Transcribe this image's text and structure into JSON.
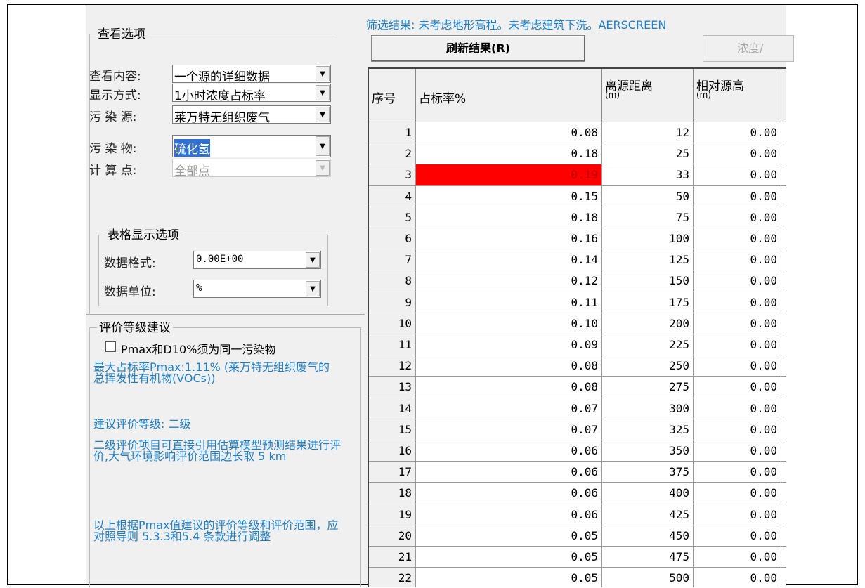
{
  "filter_result": "筛选结果: 未考虑地形高程。未考虑建筑下洗。AERSCREEN",
  "view_options": {
    "title": "查看选项",
    "fields": [
      {
        "label": "查看内容:",
        "value": "一个源的详细数据"
      },
      {
        "label": "显示方式:",
        "value": "1小时浓度占标率"
      },
      {
        "label": "污 染 源:",
        "value": "莱万特无组织废气"
      },
      {
        "label": "污 染 物:",
        "value": "硫化氢"
      },
      {
        "label": "计 算 点:",
        "value": "全部点"
      }
    ]
  },
  "table_options": {
    "title": "表格显示选项",
    "fields": [
      {
        "label": "数据格式:",
        "value": "0.00E+00"
      },
      {
        "label": "数据单位:",
        "value": "%"
      }
    ]
  },
  "grade": {
    "title": "评价等级建议",
    "checkbox": "Pmax和D10%须为同一污染物",
    "texts": [
      "最大占标率Pmax:1.11% (莱万特无组织废气的 总挥发性有机物(VOCs))",
      "建议评价等级: 二级",
      "二级评价项目可直接引用估算模型预测结果进行评价,大气环境影响评价范围边长取 5 km",
      "以上根据Pmax值建议的评价等级和评价范围，应对照导则 5.3.3和5.4 条款进行调整"
    ]
  },
  "buttons": {
    "refresh": "刷新结果(R)",
    "concentration": "浓度/"
  },
  "table": {
    "headers": [
      {
        "text": "序号"
      },
      {
        "text": "占标率%"
      },
      {
        "text": "离源距离",
        "unit": "(m)"
      },
      {
        "text": "相对源高",
        "unit": "(m)"
      }
    ],
    "rows": [
      [
        "1",
        "0.08",
        "12",
        "0.00"
      ],
      [
        "2",
        "0.18",
        "25",
        "0.00"
      ],
      [
        "3",
        "0.19",
        "33",
        "0.00"
      ],
      [
        "4",
        "0.15",
        "50",
        "0.00"
      ],
      [
        "5",
        "0.18",
        "75",
        "0.00"
      ],
      [
        "6",
        "0.16",
        "100",
        "0.00"
      ],
      [
        "7",
        "0.14",
        "125",
        "0.00"
      ],
      [
        "8",
        "0.12",
        "150",
        "0.00"
      ],
      [
        "9",
        "0.11",
        "175",
        "0.00"
      ],
      [
        "10",
        "0.10",
        "200",
        "0.00"
      ],
      [
        "11",
        "0.09",
        "225",
        "0.00"
      ],
      [
        "12",
        "0.08",
        "250",
        "0.00"
      ],
      [
        "13",
        "0.08",
        "275",
        "0.00"
      ],
      [
        "14",
        "0.07",
        "300",
        "0.00"
      ],
      [
        "15",
        "0.07",
        "325",
        "0.00"
      ],
      [
        "16",
        "0.06",
        "350",
        "0.00"
      ],
      [
        "17",
        "0.06",
        "375",
        "0.00"
      ],
      [
        "18",
        "0.06",
        "400",
        "0.00"
      ],
      [
        "19",
        "0.06",
        "425",
        "0.00"
      ],
      [
        "20",
        "0.05",
        "450",
        "0.00"
      ],
      [
        "21",
        "0.05",
        "475",
        "0.00"
      ],
      [
        "22",
        "0.05",
        "500",
        "0.00"
      ]
    ],
    "highlight_row": 2
  }
}
